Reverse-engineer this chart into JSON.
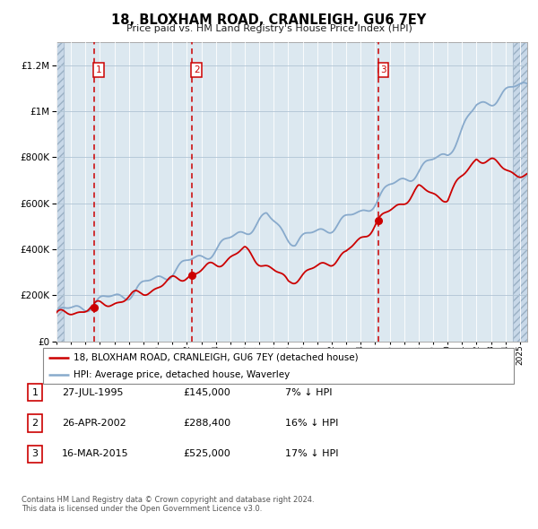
{
  "title": "18, BLOXHAM ROAD, CRANLEIGH, GU6 7EY",
  "subtitle": "Price paid vs. HM Land Registry's House Price Index (HPI)",
  "purchases": [
    {
      "label": "1",
      "year": 1995.57,
      "price": 145000,
      "date": "27-JUL-1995",
      "pct": "7%"
    },
    {
      "label": "2",
      "year": 2002.32,
      "price": 288400,
      "date": "26-APR-2002",
      "pct": "16%"
    },
    {
      "label": "3",
      "year": 2015.21,
      "price": 525000,
      "date": "16-MAR-2015",
      "pct": "17%"
    }
  ],
  "legend_line1": "18, BLOXHAM ROAD, CRANLEIGH, GU6 7EY (detached house)",
  "legend_line2": "HPI: Average price, detached house, Waverley",
  "footer1": "Contains HM Land Registry data © Crown copyright and database right 2024.",
  "footer2": "This data is licensed under the Open Government Licence v3.0.",
  "red_color": "#cc0000",
  "blue_color": "#88aacc",
  "hatch_color": "#c8d8e8",
  "bg_color": "#dce8f0",
  "ylim": [
    0,
    1300000
  ],
  "xmin": 1993.0,
  "xmax": 2025.5,
  "hatch_left_end": 1993.5,
  "hatch_right_start": 2024.5
}
